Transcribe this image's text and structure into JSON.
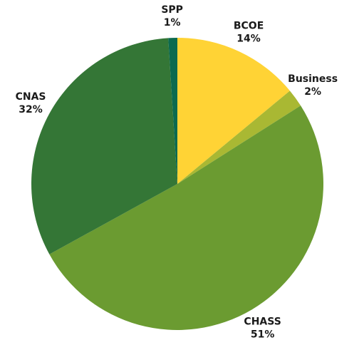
{
  "chart_data": {
    "type": "pie",
    "categories": [
      "BCOE",
      "Business",
      "CHASS",
      "CNAS",
      "SPP"
    ],
    "values": [
      14,
      2,
      51,
      32,
      1
    ],
    "value_labels": [
      "14%",
      "2%",
      "51%",
      "32%",
      "1%"
    ],
    "colors": [
      "#ffd335",
      "#a9b833",
      "#6b9b31",
      "#347636",
      "#0c6a4f"
    ]
  }
}
